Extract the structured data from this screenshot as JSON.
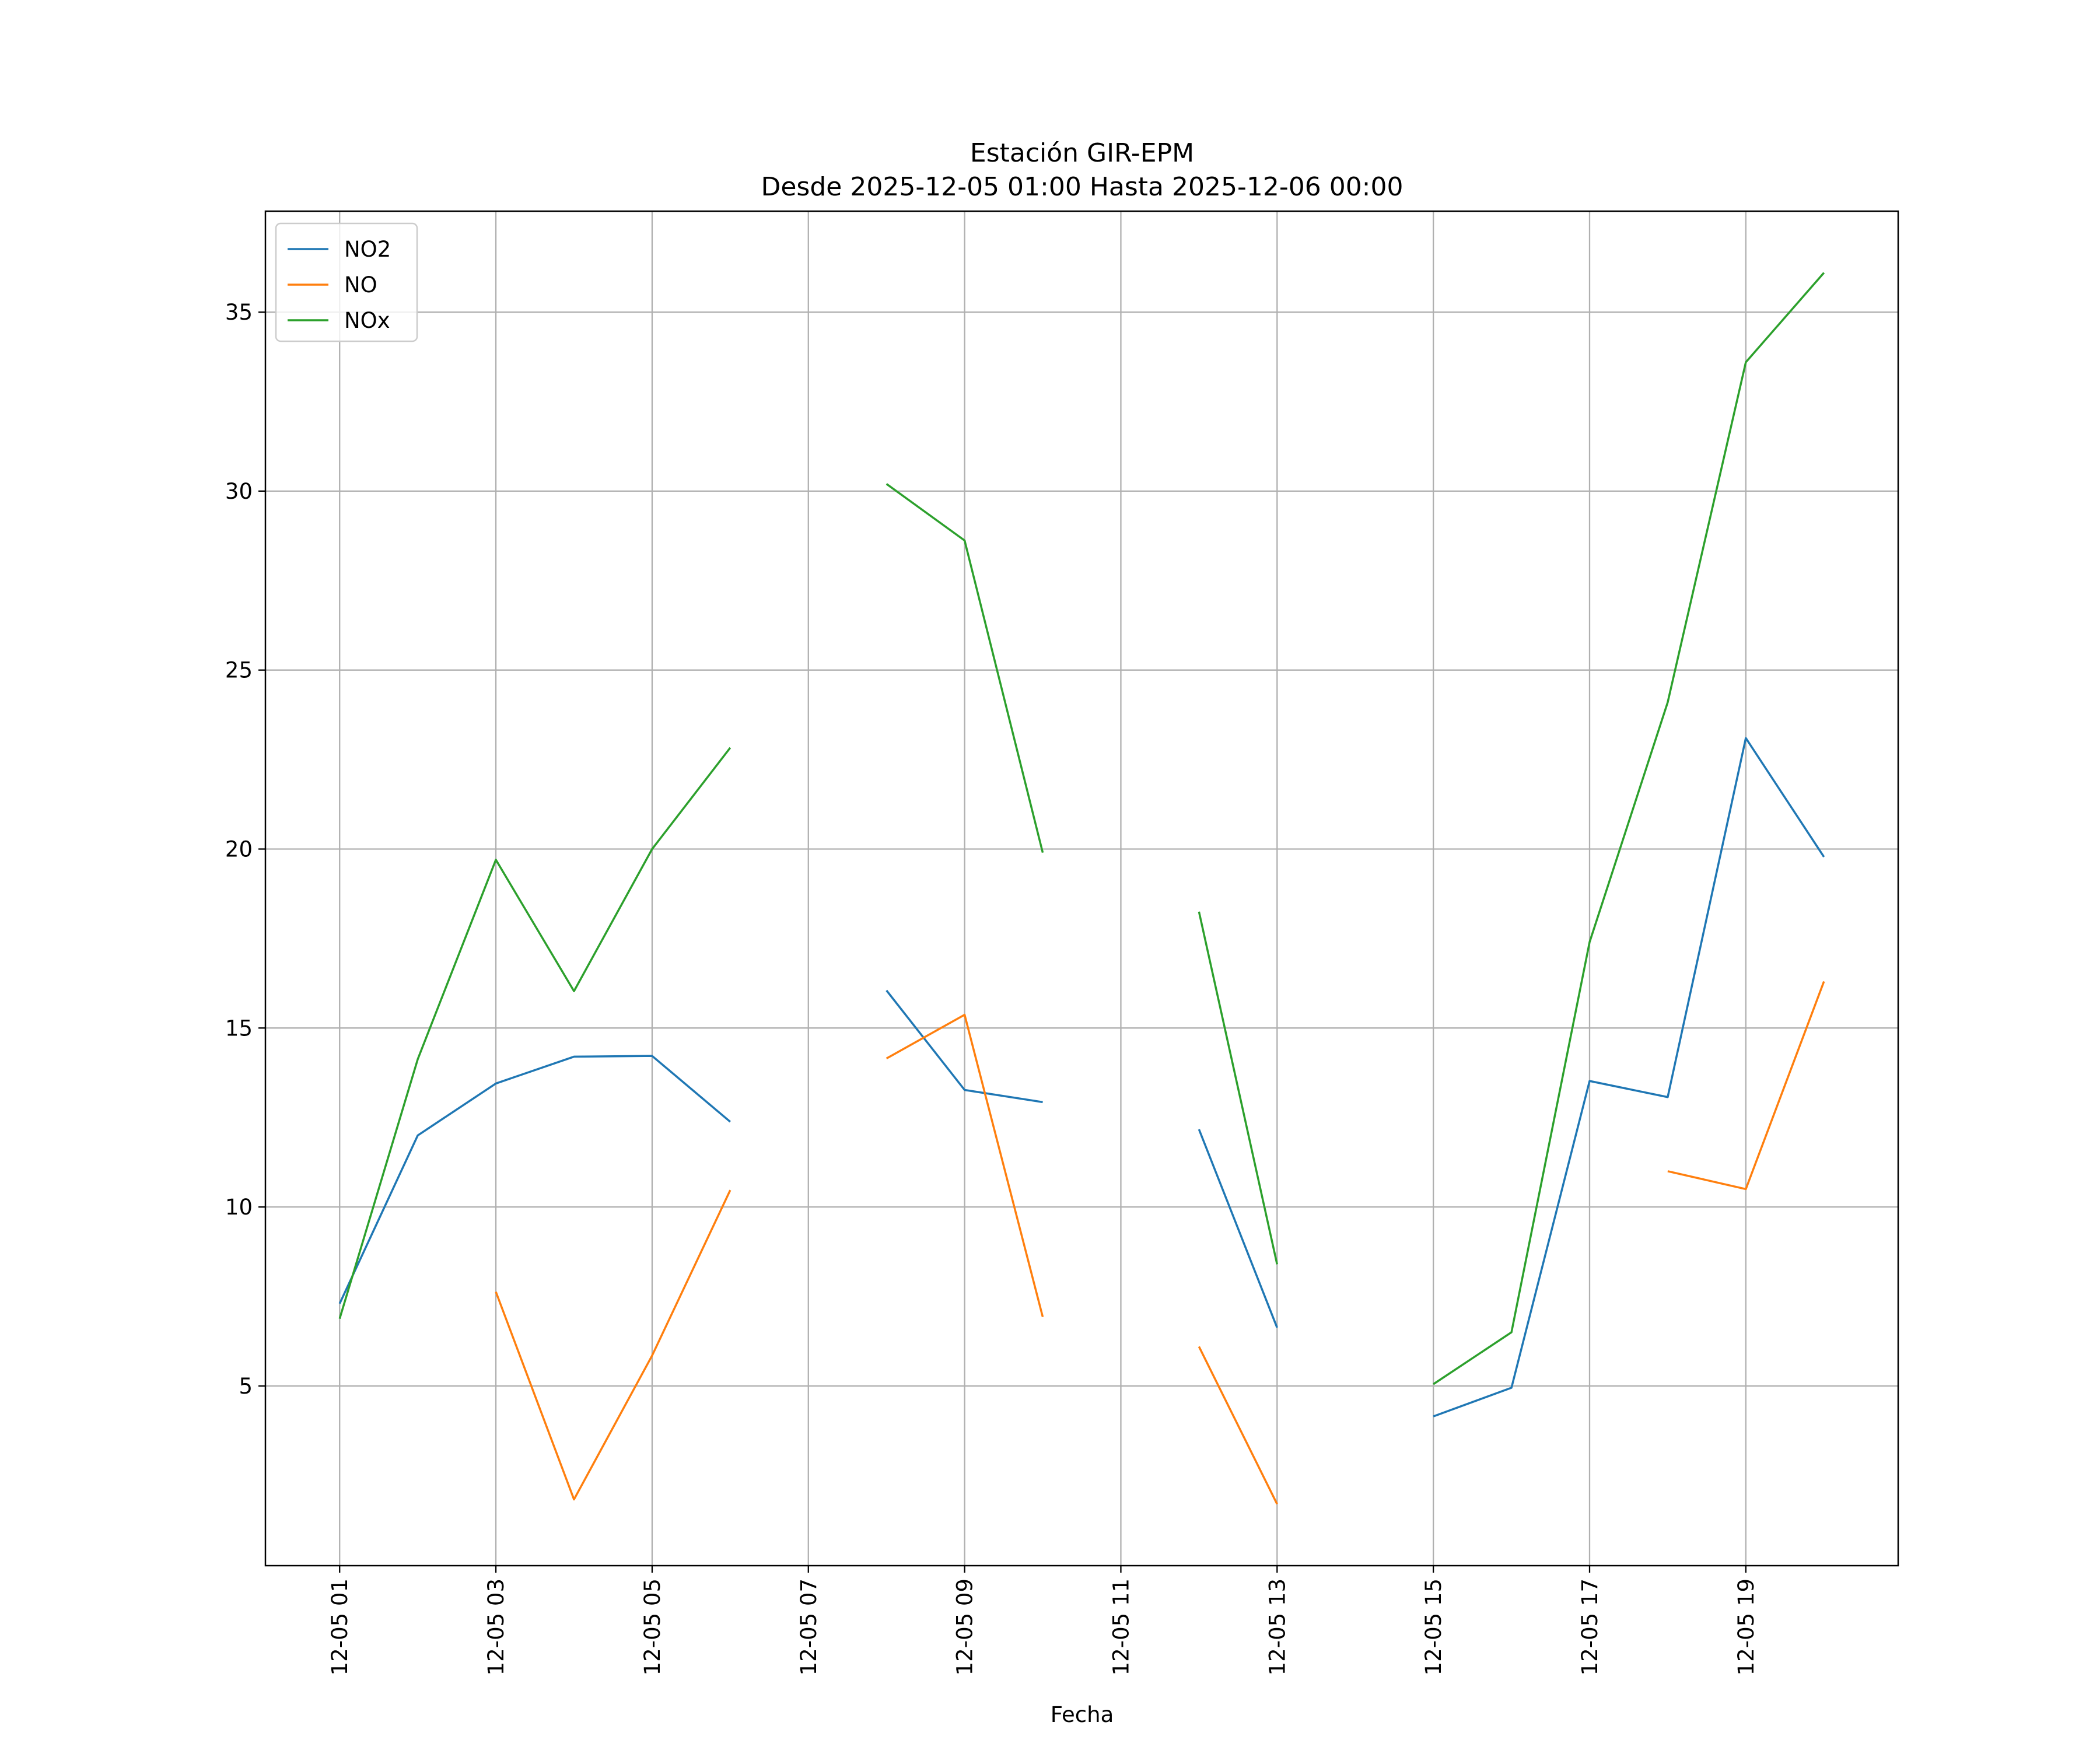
{
  "chart_data": {
    "type": "line",
    "title": "Estación GIR-EPM",
    "subtitle": "Desde 2025-12-05 01:00 Hasta 2025-12-06 00:00",
    "xlabel": "Fecha",
    "ylabel": "",
    "x": [
      "12-05 01",
      "12-05 02",
      "12-05 03",
      "12-05 04",
      "12-05 05",
      "12-05 06",
      "12-05 07",
      "12-05 08",
      "12-05 09",
      "12-05 10",
      "12-05 11",
      "12-05 12",
      "12-05 13",
      "12-05 14",
      "12-05 15",
      "12-05 16",
      "12-05 17",
      "12-05 18",
      "12-05 19",
      "12-05 20"
    ],
    "x_hours": [
      1,
      2,
      3,
      4,
      5,
      6,
      7,
      8,
      9,
      10,
      11,
      12,
      13,
      14,
      15,
      16,
      17,
      18,
      19,
      20
    ],
    "xticks": [
      1,
      3,
      5,
      7,
      9,
      11,
      13,
      15,
      17,
      19
    ],
    "xtick_labels": [
      "12-05 01",
      "12-05 03",
      "12-05 05",
      "12-05 07",
      "12-05 09",
      "12-05 11",
      "12-05 13",
      "12-05 15",
      "12-05 17",
      "12-05 19"
    ],
    "xlim": [
      0.05,
      20.95
    ],
    "ylim": [
      -0.02,
      37.82
    ],
    "yticks": [
      5,
      10,
      15,
      20,
      25,
      30,
      35
    ],
    "ytick_labels": [
      "5",
      "10",
      "15",
      "20",
      "25",
      "30",
      "35"
    ],
    "grid": true,
    "legend": "top-left",
    "series": [
      {
        "name": "NO2",
        "color": "#1f77b4",
        "values": [
          7.3,
          12.0,
          13.45,
          14.2,
          14.22,
          12.38,
          null,
          16.05,
          13.27,
          12.93,
          null,
          12.17,
          6.63,
          null,
          4.15,
          4.95,
          13.52,
          13.07,
          23.1,
          19.78
        ]
      },
      {
        "name": "NO",
        "color": "#ff7f0e",
        "values": [
          null,
          null,
          7.63,
          1.83,
          5.85,
          10.47,
          null,
          14.15,
          15.37,
          6.93,
          null,
          6.1,
          1.7,
          null,
          null,
          null,
          null,
          11.0,
          10.5,
          16.3
        ]
      },
      {
        "name": "NOx",
        "color": "#2ca02c",
        "values": [
          6.88,
          14.13,
          19.7,
          16.03,
          20.0,
          22.83,
          null,
          30.2,
          28.62,
          19.9,
          null,
          18.25,
          8.4,
          null,
          5.05,
          6.5,
          17.4,
          24.1,
          33.6,
          36.1
        ]
      }
    ]
  }
}
